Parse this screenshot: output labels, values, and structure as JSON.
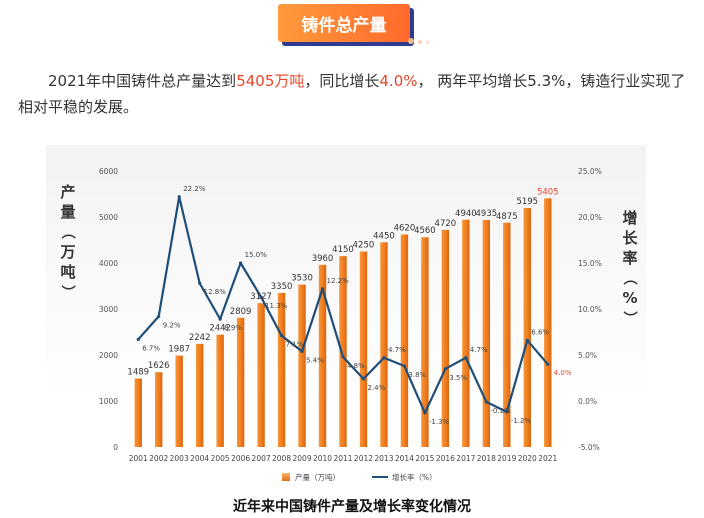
{
  "header": {
    "title": "铸件总产量"
  },
  "intro": {
    "p1": "2021年中国铸件总产量达到",
    "v1": "5405万吨",
    "p2": "，同比增长",
    "v2": "4.0%",
    "p3": "， 两年平均增长5.3%，铸造行业实现了相对平稳的发展。"
  },
  "caption": "近年来中国铸件产量及增长率变化情况",
  "colors": {
    "bar": "#f07d1e",
    "bar_light": "#fbb36a",
    "line": "#1f4e79",
    "highlight": "#e8452b"
  },
  "chart_data": {
    "type": "bar",
    "title": "",
    "categories": [
      "2001",
      "2002",
      "2003",
      "2004",
      "2005",
      "2006",
      "2007",
      "2008",
      "2009",
      "2010",
      "2011",
      "2012",
      "2013",
      "2014",
      "2015",
      "2016",
      "2017",
      "2018",
      "2019",
      "2020",
      "2021"
    ],
    "ylabel": "产量（万吨）",
    "ylabel2": "增长率（%）",
    "ylim": [
      0,
      6000
    ],
    "yticks": [
      "0",
      "1000",
      "2000",
      "3000",
      "4000",
      "5000",
      "6000"
    ],
    "ylim2": [
      -5,
      25
    ],
    "yticks2": [
      "-5.0%",
      "0.0%",
      "5.0%",
      "10.0%",
      "15.0%",
      "20.0%",
      "25.0%"
    ],
    "grid": false,
    "legend_position": "bottom",
    "series": [
      {
        "name": "产量（万吨）",
        "type": "bar",
        "values": [
          1489,
          1626,
          1987,
          2242,
          2442,
          2809,
          3127,
          3350,
          3530,
          3960,
          4150,
          4250,
          4450,
          4620,
          4560,
          4720,
          4940,
          4935,
          4875,
          5195,
          5405
        ],
        "labels": [
          "1489",
          "1626",
          "1987",
          "2242",
          "2442",
          "2809",
          "3127",
          "3350",
          "3530",
          "3960",
          "4150",
          "4250",
          "4450",
          "4620",
          "4560",
          "4720",
          "4940",
          "4935",
          "4875",
          "5195",
          "5405"
        ]
      },
      {
        "name": "增长率（%）",
        "type": "line",
        "values": [
          6.7,
          9.2,
          22.2,
          12.8,
          8.9,
          15.0,
          11.3,
          7.1,
          5.4,
          12.2,
          4.8,
          2.4,
          4.7,
          3.8,
          -1.3,
          3.5,
          4.7,
          -0.1,
          -1.2,
          6.6,
          4.0
        ],
        "labels": [
          "6.7%",
          "9.2%",
          "22.2%",
          "12.8%",
          "8.9%",
          "15.0%",
          "11.3%",
          "7.1%",
          "5.4%",
          "12.2%",
          "4.8%",
          "2.4%",
          "4.7%",
          "3.8%",
          "-1.3%",
          "3.5%",
          "4.7%",
          "-0.1%",
          "-1.2%",
          "6.6%",
          "4.0%"
        ]
      }
    ]
  }
}
